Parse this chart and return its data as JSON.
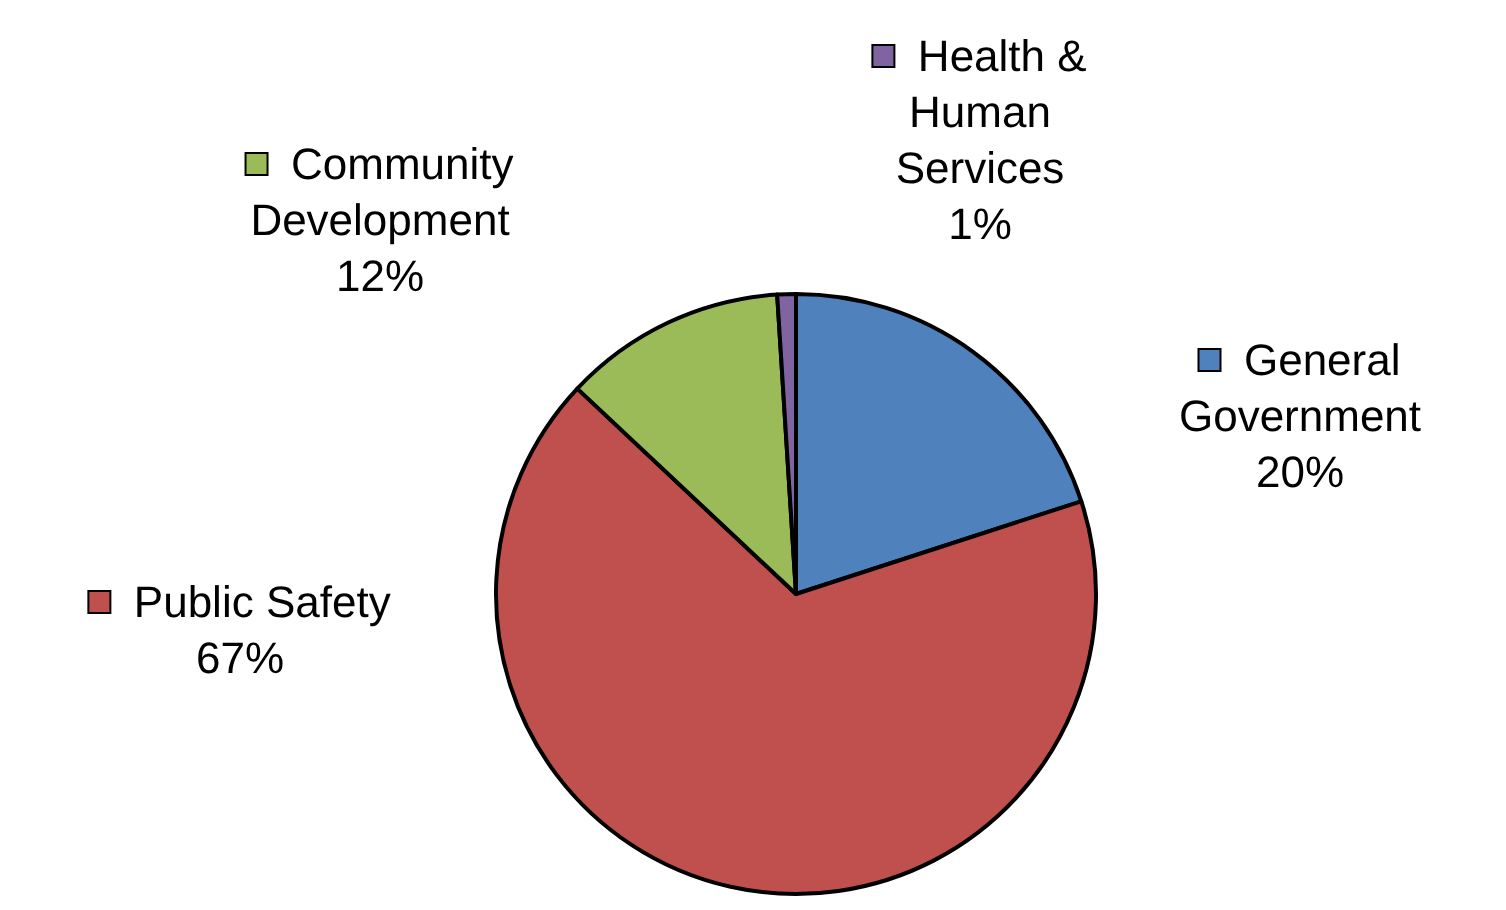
{
  "chart_data": {
    "type": "pie",
    "categories": [
      "General Government",
      "Public Safety",
      "Community Development",
      "Health & Human Services"
    ],
    "values": [
      20,
      67,
      12,
      1
    ],
    "colors": [
      "#4f81bd",
      "#c0504d",
      "#9bbb59",
      "#8064a2"
    ],
    "value_labels": [
      "20%",
      "67%",
      "12%",
      "1%"
    ],
    "legend": "top"
  }
}
